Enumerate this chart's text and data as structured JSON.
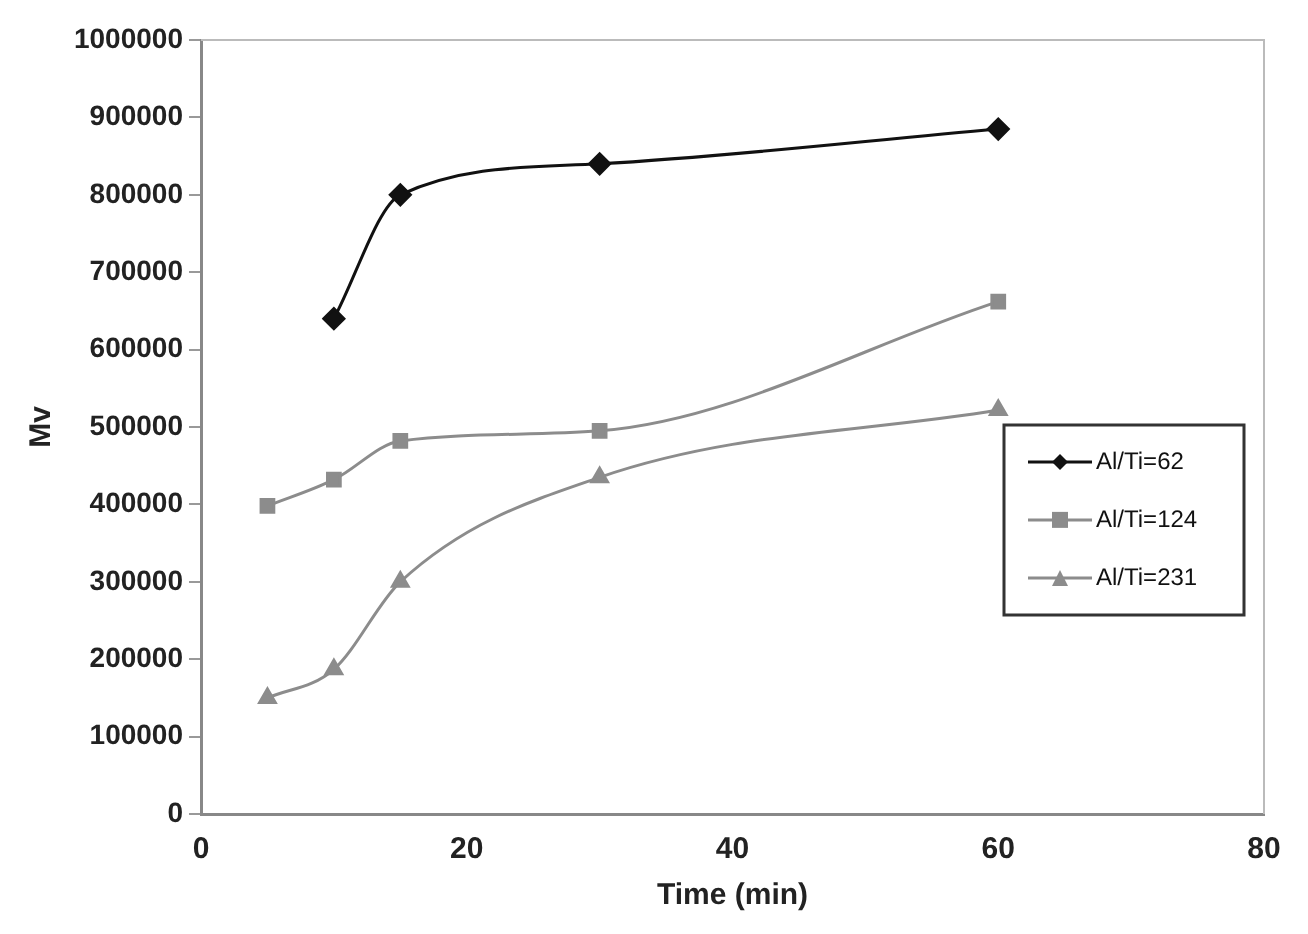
{
  "chart_data": {
    "type": "line",
    "xlabel": "Time (min)",
    "ylabel": "Mv",
    "xlim": [
      0,
      80
    ],
    "xticks": [
      0,
      20,
      40,
      60,
      80
    ],
    "ylim": [
      0,
      1000000
    ],
    "yticks": [
      0,
      100000,
      200000,
      300000,
      400000,
      500000,
      600000,
      700000,
      800000,
      900000,
      1000000
    ],
    "grid": false,
    "legend": "right",
    "line_style": "solid",
    "series": [
      {
        "name": "Al/Ti=62",
        "color": "#111111",
        "marker": "diamond",
        "x": [
          10,
          15,
          30,
          60
        ],
        "values": [
          640000,
          800000,
          840000,
          885000
        ]
      },
      {
        "name": "Al/Ti=124",
        "color": "#8c8c8c",
        "marker": "square",
        "x": [
          5,
          10,
          15,
          30,
          60
        ],
        "values": [
          398000,
          432000,
          482000,
          495000,
          662000
        ]
      },
      {
        "name": "Al/Ti=231",
        "color": "#8c8c8c",
        "marker": "triangle",
        "x": [
          5,
          10,
          15,
          30,
          60
        ],
        "values": [
          150000,
          187000,
          300000,
          435000,
          522000
        ]
      }
    ]
  }
}
